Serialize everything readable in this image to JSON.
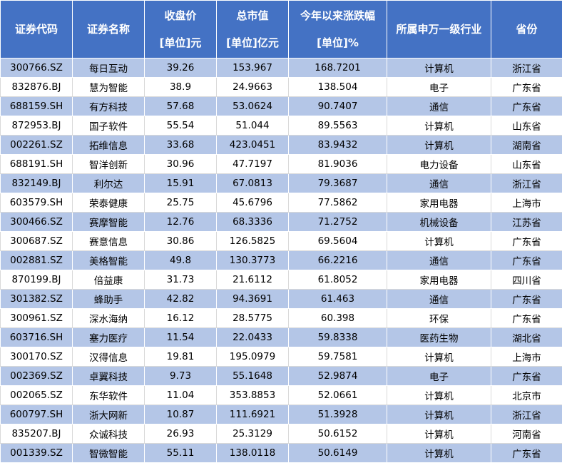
{
  "headers": [
    {
      "line1": "证券代码",
      "line2": ""
    },
    {
      "line1": "证券名称",
      "line2": ""
    },
    {
      "line1": "收盘价",
      "line2": "[单位]元"
    },
    {
      "line1": "总市值",
      "line2": "[单位]亿元"
    },
    {
      "line1": "今年以来涨跌幅",
      "line2": "[单位]%"
    },
    {
      "line1": "所属申万一级行业",
      "line2": ""
    },
    {
      "line1": "省份",
      "line2": ""
    }
  ],
  "rows": [
    [
      "300766.SZ",
      "每日互动",
      "39.26",
      "153.967",
      "168.7201",
      "计算机",
      "浙江省"
    ],
    [
      "832876.BJ",
      "慧为智能",
      "38.9",
      "24.9663",
      "138.504",
      "电子",
      "广东省"
    ],
    [
      "688159.SH",
      "有方科技",
      "57.68",
      "53.0624",
      "90.7407",
      "通信",
      "广东省"
    ],
    [
      "872953.BJ",
      "国子软件",
      "55.54",
      "51.044",
      "89.5563",
      "计算机",
      "山东省"
    ],
    [
      "002261.SZ",
      "拓维信息",
      "33.68",
      "423.0451",
      "83.9432",
      "计算机",
      "湖南省"
    ],
    [
      "688191.SH",
      "智洋创新",
      "30.96",
      "47.7197",
      "81.9036",
      "电力设备",
      "山东省"
    ],
    [
      "832149.BJ",
      "利尔达",
      "15.91",
      "67.0813",
      "79.3687",
      "通信",
      "浙江省"
    ],
    [
      "603579.SH",
      "荣泰健康",
      "25.75",
      "45.6796",
      "77.5862",
      "家用电器",
      "上海市"
    ],
    [
      "300466.SZ",
      "赛摩智能",
      "12.76",
      "68.3336",
      "71.2752",
      "机械设备",
      "江苏省"
    ],
    [
      "300687.SZ",
      "赛意信息",
      "30.86",
      "126.5825",
      "69.5604",
      "计算机",
      "广东省"
    ],
    [
      "002881.SZ",
      "美格智能",
      "49.8",
      "130.3773",
      "66.2216",
      "通信",
      "广东省"
    ],
    [
      "870199.BJ",
      "倍益康",
      "31.73",
      "21.6112",
      "61.8052",
      "家用电器",
      "四川省"
    ],
    [
      "301382.SZ",
      "蜂助手",
      "42.82",
      "94.3691",
      "61.463",
      "通信",
      "广东省"
    ],
    [
      "300961.SZ",
      "深水海纳",
      "16.12",
      "28.5775",
      "60.398",
      "环保",
      "广东省"
    ],
    [
      "603716.SH",
      "塞力医疗",
      "11.54",
      "22.0433",
      "59.8338",
      "医药生物",
      "湖北省"
    ],
    [
      "300170.SZ",
      "汉得信息",
      "19.81",
      "195.0979",
      "59.7581",
      "计算机",
      "上海市"
    ],
    [
      "002369.SZ",
      "卓翼科技",
      "9.73",
      "55.1648",
      "52.9874",
      "电子",
      "广东省"
    ],
    [
      "002065.SZ",
      "东华软件",
      "11.04",
      "353.8853",
      "52.0661",
      "计算机",
      "北京市"
    ],
    [
      "600797.SH",
      "浙大网新",
      "10.87",
      "111.6921",
      "51.3928",
      "计算机",
      "浙江省"
    ],
    [
      "835207.BJ",
      "众诚科技",
      "26.93",
      "25.3129",
      "50.6152",
      "计算机",
      "河南省"
    ],
    [
      "001339.SZ",
      "智微智能",
      "55.11",
      "138.0118",
      "50.6149",
      "计算机",
      "广东省"
    ]
  ],
  "colors": {
    "header_bg": "#4472c4",
    "header_text": "#ffffff",
    "odd_row_bg": "#b4c6e7",
    "even_row_bg": "#ffffff"
  }
}
